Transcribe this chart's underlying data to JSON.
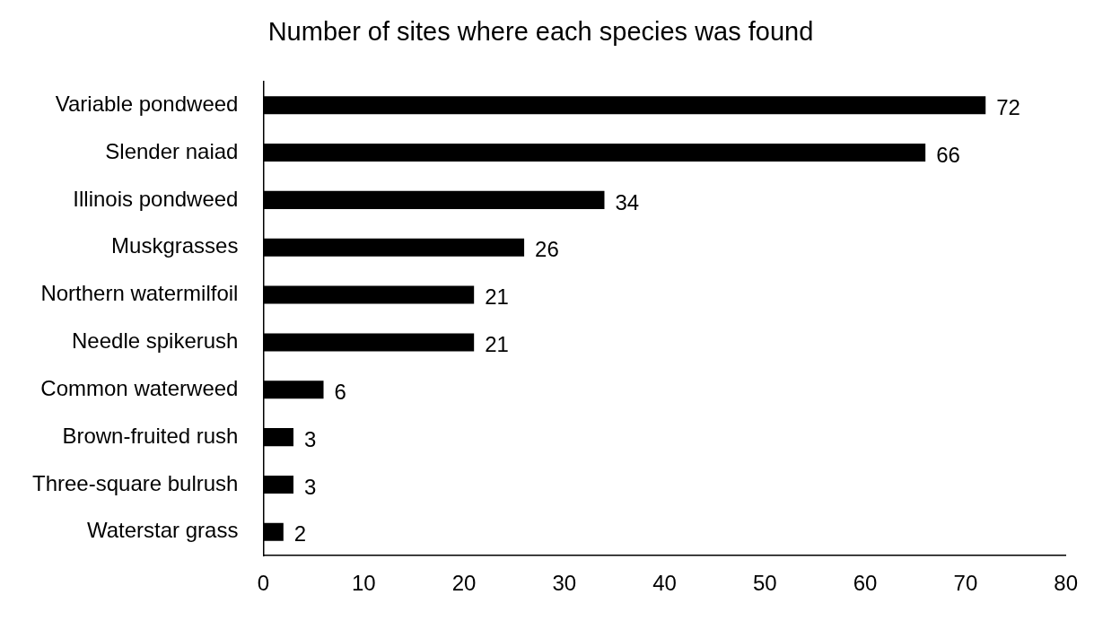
{
  "chart_data": {
    "type": "bar",
    "orientation": "horizontal",
    "title": "Number of sites where each species was found",
    "categories": [
      "Variable pondweed",
      "Slender naiad",
      "Illinois pondweed",
      "Muskgrasses",
      "Northern watermilfoil",
      "Needle spikerush",
      "Common waterweed",
      "Brown-fruited rush",
      "Three-square bulrush",
      "Waterstar grass"
    ],
    "values": [
      72,
      66,
      34,
      26,
      21,
      21,
      6,
      3,
      3,
      2
    ],
    "color": "#000000",
    "xlim": [
      0,
      80
    ],
    "xticks": [
      0,
      10,
      20,
      30,
      40,
      50,
      60,
      70,
      80
    ],
    "data_labels": true
  }
}
